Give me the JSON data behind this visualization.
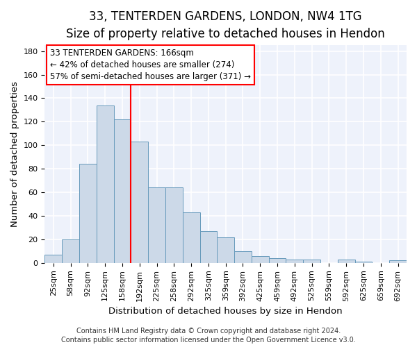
{
  "title_line1": "33, TENTERDEN GARDENS, LONDON, NW4 1TG",
  "title_line2": "Size of property relative to detached houses in Hendon",
  "xlabel": "Distribution of detached houses by size in Hendon",
  "ylabel": "Number of detached properties",
  "categories": [
    "25sqm",
    "58sqm",
    "92sqm",
    "125sqm",
    "158sqm",
    "192sqm",
    "225sqm",
    "258sqm",
    "292sqm",
    "325sqm",
    "359sqm",
    "392sqm",
    "425sqm",
    "459sqm",
    "492sqm",
    "525sqm",
    "559sqm",
    "592sqm",
    "625sqm",
    "659sqm",
    "692sqm"
  ],
  "values": [
    7,
    20,
    84,
    134,
    122,
    103,
    64,
    64,
    43,
    27,
    22,
    10,
    6,
    4,
    3,
    3,
    0,
    3,
    1,
    0,
    2
  ],
  "bar_color": "#ccd9e8",
  "bar_edge_color": "#6699bb",
  "vline_x": 4.5,
  "vline_color": "red",
  "annotation_line1": "33 TENTERDEN GARDENS: 166sqm",
  "annotation_line2": "← 42% of detached houses are smaller (274)",
  "annotation_line3": "57% of semi-detached houses are larger (371) →",
  "ylim": [
    0,
    185
  ],
  "yticks": [
    0,
    20,
    40,
    60,
    80,
    100,
    120,
    140,
    160,
    180
  ],
  "footer_line1": "Contains HM Land Registry data © Crown copyright and database right 2024.",
  "footer_line2": "Contains public sector information licensed under the Open Government Licence v3.0.",
  "bg_color": "#eef2fb",
  "grid_color": "#ffffff",
  "title1_fontsize": 12,
  "title2_fontsize": 10.5,
  "axis_label_fontsize": 9.5,
  "tick_fontsize": 8,
  "annotation_fontsize": 8.5,
  "footer_fontsize": 7
}
